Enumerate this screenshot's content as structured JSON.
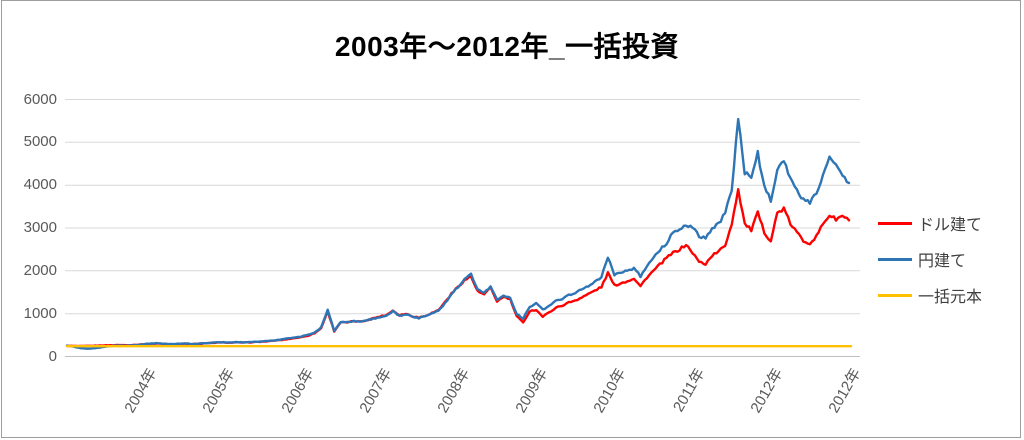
{
  "title": "2003年～2012年_一括投資",
  "axes": {
    "y_max_label": "6000",
    "y_min_label": "0"
  },
  "chart_data": {
    "type": "line",
    "title": "2003年～2012年_一括投資",
    "xlabel": "",
    "ylabel": "",
    "ylim": [
      0,
      6000
    ],
    "grid": true,
    "legend_position": "right",
    "x_start_year": 2003,
    "x_interval": "monthly",
    "x_end_year": 2013,
    "yticks_desc": [
      6000,
      5000,
      4000,
      3000,
      2000,
      1000,
      0
    ],
    "xticklabels": [
      "2004年",
      "2005年",
      "2006年",
      "2007年",
      "2008年",
      "2009年",
      "2010年",
      "2011年",
      "2012年",
      "2012年"
    ],
    "series": [
      {
        "name": "ドル建て",
        "key": "dollar",
        "color": "#ff0000",
        "values": [
          250,
          246,
          242,
          246,
          250,
          255,
          260,
          264,
          268,
          264,
          268,
          278,
          288,
          298,
          304,
          294,
          284,
          292,
          298,
          288,
          294,
          304,
          314,
          324,
          328,
          323,
          328,
          324,
          330,
          338,
          348,
          356,
          374,
          386,
          410,
          432,
          452,
          488,
          545,
          660,
          1060,
          590,
          800,
          792,
          824,
          812,
          850,
          892,
          935,
          965,
          1075,
          965,
          1000,
          940,
          910,
          955,
          1015,
          1085,
          1270,
          1465,
          1630,
          1780,
          1870,
          1520,
          1450,
          1600,
          1290,
          1390,
          1340,
          940,
          790,
          1060,
          1090,
          930,
          1030,
          1140,
          1190,
          1260,
          1310,
          1380,
          1460,
          1540,
          1620,
          1950,
          1660,
          1710,
          1760,
          1830,
          1640,
          1850,
          2000,
          2150,
          2300,
          2420,
          2500,
          2610,
          2420,
          2210,
          2160,
          2360,
          2450,
          2600,
          3100,
          3900,
          3100,
          2950,
          3350,
          2900,
          2700,
          3350,
          3450,
          3100,
          2900,
          2700,
          2650,
          2800,
          3100,
          3300,
          3200,
          3280,
          3180
        ]
      },
      {
        "name": "円建て",
        "key": "yen",
        "color": "#2e75b6",
        "values": [
          255,
          230,
          195,
          182,
          190,
          205,
          235,
          252,
          258,
          252,
          258,
          272,
          292,
          303,
          310,
          300,
          290,
          298,
          304,
          294,
          300,
          310,
          320,
          330,
          334,
          329,
          334,
          330,
          338,
          344,
          354,
          364,
          384,
          398,
          424,
          448,
          470,
          505,
          565,
          680,
          1090,
          600,
          810,
          800,
          830,
          815,
          845,
          880,
          920,
          950,
          1060,
          950,
          985,
          925,
          895,
          940,
          1000,
          1070,
          1250,
          1450,
          1620,
          1800,
          1920,
          1560,
          1480,
          1640,
          1320,
          1420,
          1380,
          1000,
          890,
          1150,
          1250,
          1090,
          1180,
          1300,
          1350,
          1430,
          1490,
          1560,
          1650,
          1750,
          1850,
          2320,
          1900,
          1950,
          2000,
          2070,
          1870,
          2100,
          2300,
          2500,
          2650,
          2920,
          2980,
          3050,
          3040,
          2800,
          2750,
          3000,
          3100,
          3350,
          3900,
          5540,
          4300,
          4150,
          4750,
          3950,
          3650,
          4350,
          4600,
          4150,
          3900,
          3650,
          3600,
          3800,
          4250,
          4700,
          4450,
          4200,
          4050
        ]
      },
      {
        "name": "一括元本",
        "key": "principal",
        "color": "#ffc000",
        "constant": 240
      }
    ]
  },
  "legend": {
    "items": [
      {
        "label": "ドル建て",
        "color": "#ff0000"
      },
      {
        "label": "円建て",
        "color": "#2e75b6"
      },
      {
        "label": "一括元本",
        "color": "#ffc000"
      }
    ]
  },
  "colors": {
    "gridline": "#d9d9d9",
    "axis_line": "#bfbfbf",
    "tick_label": "#595959",
    "title": "#000000"
  }
}
